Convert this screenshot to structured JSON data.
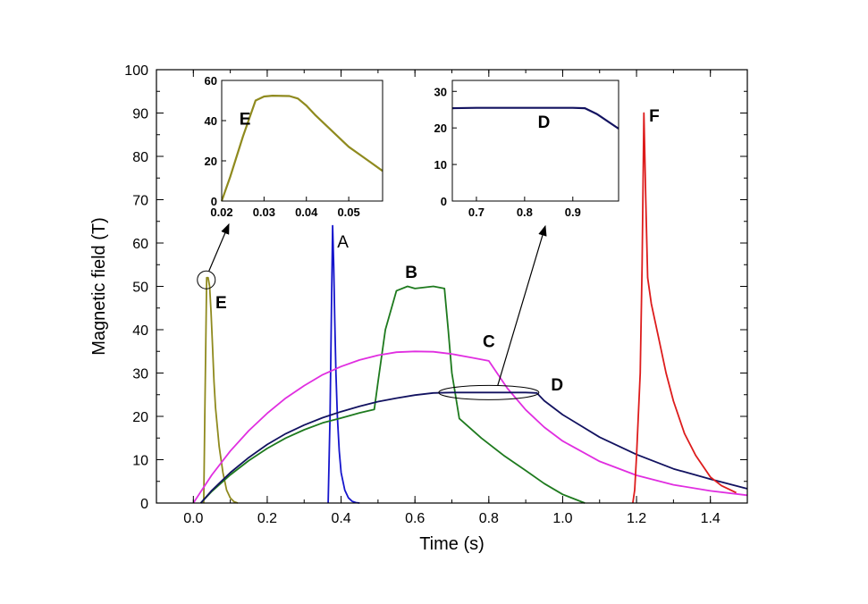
{
  "chart_data": [
    {
      "type": "line",
      "xlabel": "Time (s)",
      "ylabel": "Magnetic field (T)",
      "xlim": [
        -0.1,
        1.5
      ],
      "ylim": [
        0,
        100
      ],
      "xticks": [
        "0.0",
        "0.2",
        "0.4",
        "0.6",
        "0.8",
        "1.0",
        "1.2",
        "1.4"
      ],
      "yticks": [
        "0",
        "10",
        "20",
        "30",
        "40",
        "50",
        "60",
        "70",
        "80",
        "90",
        "100"
      ],
      "series": [
        {
          "name": "E",
          "color": "#8f8a1e",
          "x": [
            0.028,
            0.031,
            0.036,
            0.04,
            0.044,
            0.048,
            0.052,
            0.056,
            0.06,
            0.07,
            0.08,
            0.09,
            0.1,
            0.11,
            0.12
          ],
          "y": [
            0,
            20,
            52,
            52,
            50,
            44,
            36,
            28,
            22,
            13,
            7,
            3,
            1.2,
            0.3,
            0
          ]
        },
        {
          "name": "A",
          "color": "#1515cc",
          "x": [
            0.365,
            0.37,
            0.374,
            0.377,
            0.38,
            0.383,
            0.386,
            0.39,
            0.395,
            0.4,
            0.41,
            0.42,
            0.43,
            0.44,
            0.45
          ],
          "y": [
            0,
            20,
            45,
            64,
            55,
            42,
            30,
            20,
            12,
            7,
            3,
            1.2,
            0.4,
            0.1,
            0
          ]
        },
        {
          "name": "B",
          "color": "#1e7a1e",
          "x": [
            0.02,
            0.05,
            0.1,
            0.15,
            0.2,
            0.25,
            0.3,
            0.35,
            0.4,
            0.45,
            0.49,
            0.5,
            0.52,
            0.55,
            0.58,
            0.6,
            0.65,
            0.68,
            0.69,
            0.7,
            0.72,
            0.78,
            0.84,
            0.9,
            0.95,
            1.0,
            1.06
          ],
          "y": [
            0,
            2.7,
            6.5,
            9.8,
            12.6,
            15.0,
            16.9,
            18.5,
            19.6,
            20.8,
            21.6,
            28,
            40,
            49,
            50,
            49.5,
            50,
            49.5,
            40,
            30,
            19.5,
            15,
            11,
            7.5,
            4.5,
            2,
            0
          ]
        },
        {
          "name": "C",
          "color": "#e02ee0",
          "x": [
            0.0,
            0.05,
            0.1,
            0.15,
            0.2,
            0.25,
            0.3,
            0.35,
            0.4,
            0.45,
            0.5,
            0.55,
            0.6,
            0.65,
            0.7,
            0.75,
            0.8,
            0.85,
            0.9,
            0.95,
            1.0,
            1.1,
            1.2,
            1.3,
            1.4,
            1.5
          ],
          "y": [
            0,
            6.5,
            12.0,
            16.7,
            20.7,
            24.2,
            27.1,
            29.6,
            31.5,
            33.0,
            34.1,
            34.8,
            35.0,
            34.9,
            34.4,
            33.6,
            32.8,
            26.5,
            21.5,
            17.5,
            14.3,
            9.6,
            6.4,
            4.2,
            2.8,
            1.8
          ]
        },
        {
          "name": "D",
          "color": "#121260",
          "x": [
            0.02,
            0.05,
            0.1,
            0.15,
            0.2,
            0.25,
            0.3,
            0.35,
            0.4,
            0.45,
            0.5,
            0.55,
            0.6,
            0.65,
            0.7,
            0.75,
            0.8,
            0.85,
            0.9,
            0.93,
            0.95,
            1.0,
            1.1,
            1.2,
            1.3,
            1.4,
            1.5
          ],
          "y": [
            0,
            2.9,
            7.0,
            10.5,
            13.5,
            16.0,
            18.0,
            19.7,
            21.1,
            22.3,
            23.4,
            24.2,
            24.9,
            25.4,
            25.5,
            25.5,
            25.5,
            25.5,
            25.5,
            25.4,
            23.6,
            20.4,
            15.2,
            11.2,
            7.9,
            5.5,
            3.3
          ]
        },
        {
          "name": "F",
          "color": "#dd1c1c",
          "x": [
            1.19,
            1.195,
            1.2,
            1.21,
            1.215,
            1.22,
            1.225,
            1.23,
            1.24,
            1.26,
            1.28,
            1.3,
            1.33,
            1.36,
            1.4,
            1.43,
            1.47
          ],
          "y": [
            0,
            3,
            11,
            30,
            55,
            90,
            70,
            52,
            46,
            38,
            30,
            23.5,
            16,
            11,
            6,
            4,
            2.4
          ]
        }
      ],
      "annotations": [
        {
          "text": "E",
          "x": 0.075,
          "y": 45,
          "style": "bold"
        },
        {
          "text": "A",
          "x": 0.405,
          "y": 59,
          "style": "plain"
        },
        {
          "text": "B",
          "x": 0.59,
          "y": 52,
          "style": "bold"
        },
        {
          "text": "C",
          "x": 0.8,
          "y": 36,
          "style": "bold"
        },
        {
          "text": "D",
          "x": 0.985,
          "y": 26,
          "style": "bold"
        },
        {
          "text": "F",
          "x": 1.248,
          "y": 88,
          "style": "bold"
        }
      ]
    },
    {
      "type": "line",
      "inset": "E",
      "xlim": [
        0.02,
        0.058
      ],
      "ylim": [
        0,
        60
      ],
      "xticks": [
        "0.02",
        "0.03",
        "0.04",
        "0.05"
      ],
      "yticks": [
        "0",
        "20",
        "40",
        "60"
      ],
      "series": [
        {
          "name": "E",
          "color": "#8f8a1e",
          "x": [
            0.02,
            0.022,
            0.025,
            0.028,
            0.03,
            0.032,
            0.036,
            0.038,
            0.04,
            0.042,
            0.045,
            0.048,
            0.05,
            0.053,
            0.055,
            0.058
          ],
          "y": [
            0,
            12,
            32,
            50,
            52,
            52.4,
            52.2,
            51.0,
            47.5,
            43,
            37,
            31,
            27,
            22.5,
            19.5,
            15
          ]
        }
      ],
      "annotations": [
        {
          "text": "E",
          "x": 0.0255,
          "y": 38
        }
      ]
    },
    {
      "type": "line",
      "inset": "D",
      "xlim": [
        0.65,
        0.995
      ],
      "ylim": [
        0,
        33
      ],
      "xticks": [
        "0.7",
        "0.8",
        "0.9"
      ],
      "yticks": [
        "0",
        "10",
        "20",
        "30"
      ],
      "series": [
        {
          "name": "D",
          "color": "#121260",
          "x": [
            0.65,
            0.7,
            0.75,
            0.8,
            0.85,
            0.9,
            0.925,
            0.95,
            0.995
          ],
          "y": [
            25.4,
            25.5,
            25.5,
            25.5,
            25.5,
            25.5,
            25.4,
            23.8,
            19.8
          ]
        }
      ],
      "annotations": [
        {
          "text": "D",
          "x": 0.84,
          "y": 20
        }
      ]
    }
  ]
}
